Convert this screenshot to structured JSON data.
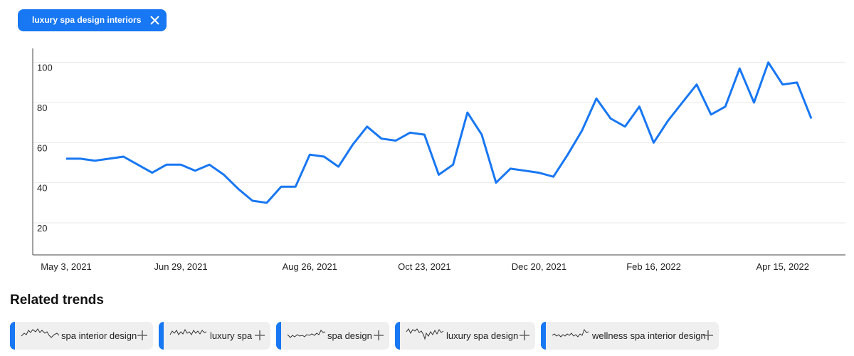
{
  "filter_chip": {
    "label": "luxury spa design interiors"
  },
  "chart_data": {
    "type": "line",
    "categories": [
      "May 3, 2021",
      null,
      null,
      null,
      null,
      null,
      null,
      null,
      "Jun 29, 2021",
      null,
      null,
      null,
      null,
      null,
      null,
      null,
      null,
      "Aug 26, 2021",
      null,
      null,
      null,
      null,
      null,
      null,
      null,
      "Oct 23, 2021",
      null,
      null,
      null,
      null,
      null,
      null,
      null,
      "Dec 20, 2021",
      null,
      null,
      null,
      null,
      null,
      null,
      null,
      "Feb 16, 2022",
      null,
      null,
      null,
      null,
      null,
      null,
      null,
      null,
      "Apr 15, 2022",
      null,
      null
    ],
    "values": [
      52,
      52,
      51,
      52,
      53,
      49,
      45,
      49,
      49,
      46,
      49,
      44,
      37,
      31,
      30,
      38,
      38,
      54,
      53,
      48,
      59,
      68,
      62,
      61,
      65,
      64,
      44,
      49,
      75,
      64,
      40,
      47,
      46,
      45,
      43,
      54,
      66,
      82,
      72,
      68,
      78,
      60,
      71,
      80,
      89,
      74,
      78,
      97,
      80,
      100,
      89,
      90,
      72
    ],
    "color": "#1877f2",
    "ylim": [
      4,
      107
    ],
    "yticks": [
      20,
      40,
      60,
      80,
      100
    ],
    "grid": true
  },
  "related_trends": {
    "title": "Related trends",
    "items": [
      "spa interior design",
      "luxury spa",
      "spa design",
      "luxury spa design",
      "wellness spa interior design"
    ]
  }
}
